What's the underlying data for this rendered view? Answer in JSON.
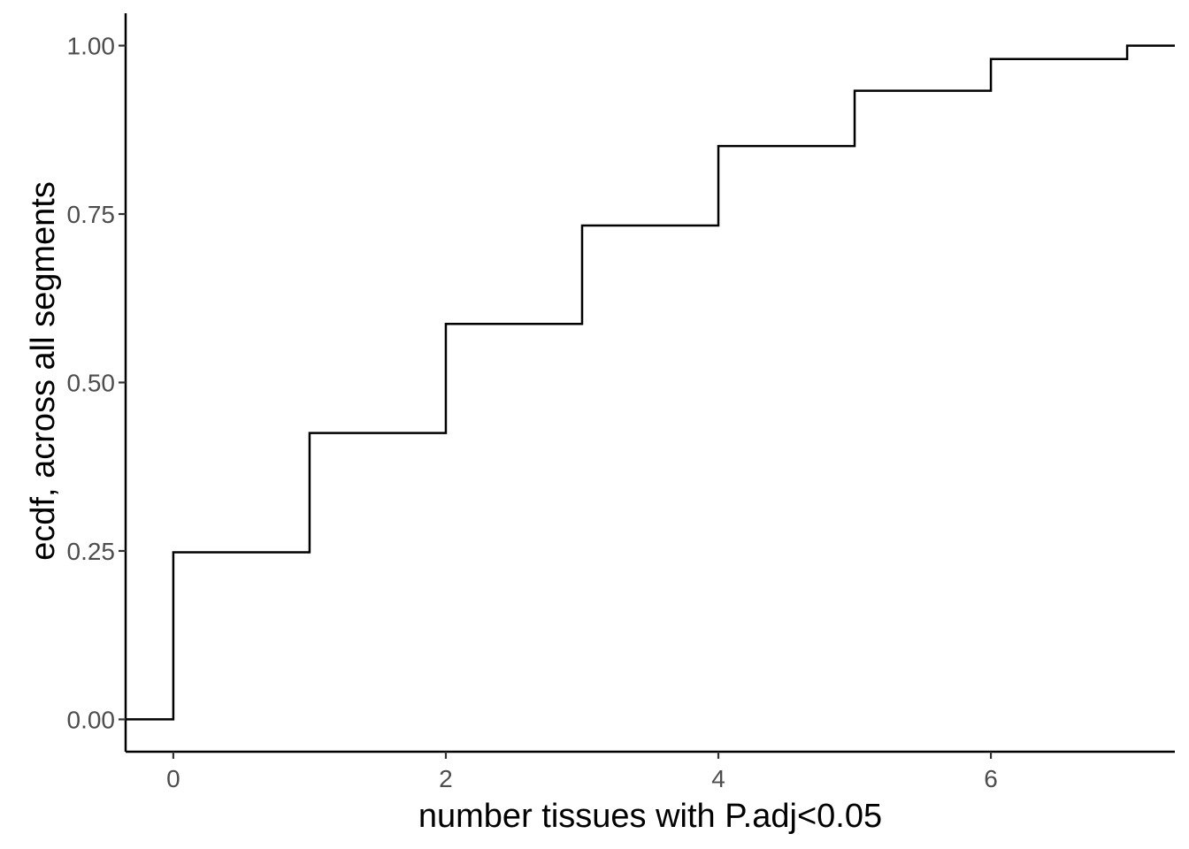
{
  "chart_data": {
    "type": "line",
    "subtype": "step",
    "title": "",
    "xlabel": "number tissues with P.adj<0.05",
    "ylabel": "ecdf, across all segments",
    "xlim": [
      -0.35,
      7.35
    ],
    "ylim": [
      -0.048,
      1.048
    ],
    "x_ticks": [
      0,
      2,
      4,
      6
    ],
    "x_tick_labels": [
      "0",
      "2",
      "4",
      "6"
    ],
    "y_ticks": [
      0,
      0.25,
      0.5,
      0.75,
      1
    ],
    "y_tick_labels": [
      "0.00",
      "0.25",
      "0.50",
      "0.75",
      "1.00"
    ],
    "grid": false,
    "legend": "none",
    "line_color": "#000000",
    "series": [
      {
        "x": [
          0,
          1,
          2,
          3,
          4,
          5,
          6,
          7
        ],
        "y": [
          0.248,
          0.425,
          0.587,
          0.733,
          0.851,
          0.933,
          0.98,
          1.0
        ]
      }
    ]
  }
}
